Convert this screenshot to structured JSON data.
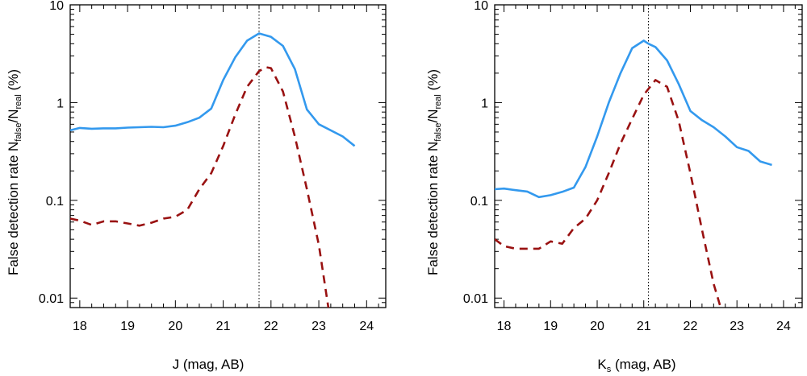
{
  "chart_data": [
    {
      "type": "line",
      "xlabel": "J (mag, AB)",
      "ylabel": {
        "main": "False detection rate N",
        "sub1": "false",
        "mid": "/N",
        "sub2": "real",
        "tail": " (%)"
      },
      "xlim": [
        17.8,
        24.4
      ],
      "ylim": [
        0.008,
        10
      ],
      "yscale": "log",
      "xticks": [
        18,
        19,
        20,
        21,
        22,
        23,
        24
      ],
      "yticks": [
        0.01,
        0.1,
        1,
        10
      ],
      "ytick_labels": [
        "0.01",
        "0.1",
        "1",
        "10"
      ],
      "vline": 21.75,
      "series": [
        {
          "name": "solid-blue",
          "color": "#3399ee",
          "style": "solid",
          "x": [
            17.8,
            18.0,
            18.25,
            18.5,
            18.75,
            19.0,
            19.25,
            19.5,
            19.75,
            20.0,
            20.25,
            20.5,
            20.75,
            21.0,
            21.25,
            21.5,
            21.75,
            22.0,
            22.25,
            22.5,
            22.75,
            23.0,
            23.5,
            23.75
          ],
          "y": [
            0.52,
            0.55,
            0.54,
            0.545,
            0.545,
            0.555,
            0.56,
            0.565,
            0.56,
            0.58,
            0.63,
            0.7,
            0.87,
            1.7,
            2.9,
            4.3,
            5.1,
            4.7,
            3.8,
            2.2,
            0.85,
            0.6,
            0.45,
            0.36
          ]
        },
        {
          "name": "dashed-red",
          "color": "#991111",
          "style": "dashed",
          "x": [
            17.8,
            18.0,
            18.25,
            18.5,
            18.75,
            19.0,
            19.25,
            19.5,
            19.75,
            20.0,
            20.25,
            20.5,
            20.75,
            21.0,
            21.25,
            21.5,
            21.75,
            21.9,
            22.0,
            22.25,
            22.5,
            22.75,
            23.0,
            23.2
          ],
          "y": [
            0.065,
            0.062,
            0.056,
            0.061,
            0.061,
            0.058,
            0.055,
            0.059,
            0.065,
            0.068,
            0.08,
            0.13,
            0.19,
            0.36,
            0.75,
            1.45,
            2.1,
            2.3,
            2.25,
            1.3,
            0.45,
            0.13,
            0.035,
            0.008
          ]
        }
      ]
    },
    {
      "type": "line",
      "xlabel": {
        "main": "K",
        "sub": "s",
        "tail": " (mag, AB)"
      },
      "ylabel": {
        "main": "False detection rate N",
        "sub1": "false",
        "mid": "/N",
        "sub2": "real",
        "tail": " (%)"
      },
      "xlim": [
        17.8,
        24.4
      ],
      "ylim": [
        0.008,
        10
      ],
      "yscale": "log",
      "xticks": [
        18,
        19,
        20,
        21,
        22,
        23,
        24
      ],
      "yticks": [
        0.01,
        0.1,
        1,
        10
      ],
      "ytick_labels": [
        "0.01",
        "0.1",
        "1",
        "10"
      ],
      "vline": 21.1,
      "series": [
        {
          "name": "solid-blue",
          "color": "#3399ee",
          "style": "solid",
          "x": [
            17.8,
            18.0,
            18.25,
            18.5,
            18.75,
            19.0,
            19.25,
            19.5,
            19.75,
            20.0,
            20.25,
            20.5,
            20.75,
            21.0,
            21.1,
            21.25,
            21.5,
            21.75,
            22.0,
            22.25,
            22.5,
            22.75,
            23.0,
            23.25,
            23.5,
            23.75
          ],
          "y": [
            0.13,
            0.132,
            0.127,
            0.123,
            0.108,
            0.113,
            0.122,
            0.135,
            0.22,
            0.45,
            1.0,
            2.0,
            3.6,
            4.3,
            4.0,
            3.7,
            2.7,
            1.55,
            0.82,
            0.66,
            0.56,
            0.45,
            0.35,
            0.32,
            0.25,
            0.23
          ]
        },
        {
          "name": "dashed-red",
          "color": "#991111",
          "style": "dashed",
          "x": [
            17.8,
            18.0,
            18.25,
            18.5,
            18.75,
            19.0,
            19.25,
            19.5,
            19.75,
            20.0,
            20.25,
            20.5,
            20.75,
            21.0,
            21.25,
            21.5,
            21.75,
            22.0,
            22.25,
            22.5,
            22.65
          ],
          "y": [
            0.04,
            0.034,
            0.032,
            0.032,
            0.032,
            0.038,
            0.036,
            0.052,
            0.065,
            0.1,
            0.19,
            0.38,
            0.68,
            1.2,
            1.7,
            1.45,
            0.65,
            0.19,
            0.05,
            0.014,
            0.008
          ]
        }
      ]
    }
  ]
}
